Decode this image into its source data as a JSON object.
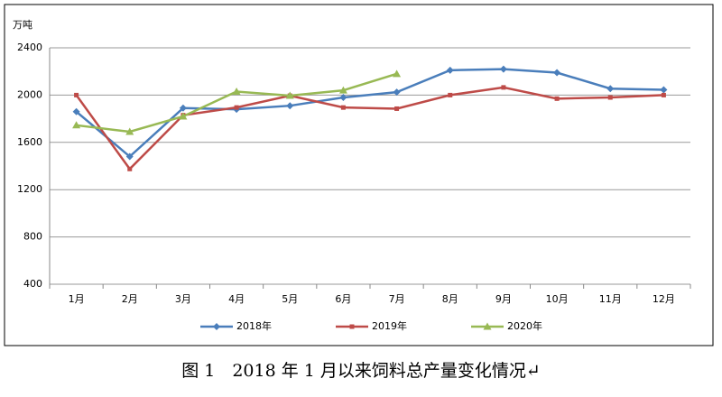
{
  "chart_data": {
    "type": "line",
    "title": "图 1　2018 年 1 月以来饲料总产量变化情况↵",
    "y_label": "万吨",
    "categories": [
      "1月",
      "2月",
      "3月",
      "4月",
      "5月",
      "6月",
      "7月",
      "8月",
      "9月",
      "10月",
      "11月",
      "12月"
    ],
    "series": [
      {
        "name": "2018年",
        "color": "#4a7ebb",
        "marker": "diamond",
        "values": [
          1860,
          1480,
          1890,
          1880,
          1910,
          1980,
          2025,
          2210,
          2220,
          2190,
          2055,
          2045
        ]
      },
      {
        "name": "2019年",
        "color": "#be4b48",
        "marker": "square",
        "values": [
          2000,
          1375,
          1830,
          1895,
          1995,
          1895,
          1885,
          2000,
          2065,
          1970,
          1980,
          2000
        ]
      },
      {
        "name": "2020年",
        "color": "#98b954",
        "marker": "triangle",
        "values": [
          1745,
          1690,
          1820,
          2030,
          1995,
          2040,
          2180,
          null,
          null,
          null,
          null,
          null
        ]
      }
    ],
    "ylim": [
      400,
      2400
    ],
    "yticks": [
      400,
      800,
      1200,
      1600,
      2000,
      2400
    ],
    "grid": true
  }
}
